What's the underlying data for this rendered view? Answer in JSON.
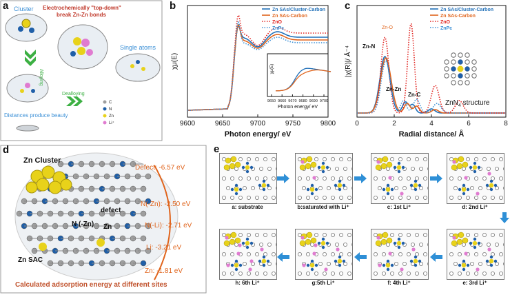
{
  "panel_a": {
    "label": "a",
    "cluster": "Cluster",
    "single_atoms": "Single atoms",
    "breaking_text": "Electrochemically \"top-down\" break Zn-Zn bonds",
    "alloying": "Alloying",
    "dealloying": "Dealloying",
    "distances": "Distances produce beauty",
    "legend": [
      "C",
      "N",
      "Zn",
      "Li⁺"
    ],
    "colors": {
      "cluster_text": "#3a8fd6",
      "red_text": "#c0392b",
      "green_arrow": "#3cb043",
      "zn": "#e8d21a",
      "n": "#1f5fa8",
      "li": "#e07bd0"
    }
  },
  "panel_b": {
    "label": "b",
    "chart_data": {
      "type": "line",
      "xlabel": "Photon energy/ eV",
      "ylabel": "χμ(E)",
      "xlim": [
        9600,
        9800
      ],
      "xticks": [
        "9600",
        "9650",
        "9700",
        "9750",
        "9800"
      ],
      "legend_placement": "top-right",
      "series": [
        {
          "name": "Zn SAs/Cluster-Carbon",
          "color": "#1f6fb8",
          "style": "solid"
        },
        {
          "name": "Zn SAs-Carbon",
          "color": "#e0641c",
          "style": "solid"
        },
        {
          "name": "ZnO",
          "color": "#e0201c",
          "style": "dotted"
        },
        {
          "name": "ZnPc",
          "color": "#3a8fd6",
          "style": "dotted"
        }
      ],
      "inset": {
        "xlabel": "Photon energy/ eV",
        "ylabel": "χμ(E)",
        "xticks": [
          "9650",
          "9660",
          "9670",
          "9680",
          "9690",
          "9700"
        ]
      }
    }
  },
  "panel_c": {
    "label": "c",
    "chart_data": {
      "type": "line",
      "xlabel": "Radial distance/ Å",
      "ylabel": "|χ(R)|/ Å⁻⁴",
      "xlim": [
        0,
        8
      ],
      "xticks": [
        "0",
        "2",
        "4",
        "6",
        "8"
      ],
      "legend_placement": "top-right",
      "series": [
        {
          "name": "Zn SAs/Cluster-Carbon",
          "color": "#1f6fb8",
          "style": "solid"
        },
        {
          "name": "Zn SAs-Carbon",
          "color": "#e0641c",
          "style": "solid"
        },
        {
          "name": "ZnO",
          "color": "#e0201c",
          "style": "dotted"
        },
        {
          "name": "ZnPc",
          "color": "#3a8fd6",
          "style": "dotted"
        }
      ],
      "annotations": [
        "Zn-O",
        "Zn-N",
        "Zn-Zn",
        "Zn-C"
      ],
      "structure_label": "ZnN",
      "structure_sub": "4",
      "structure_suffix": " structure"
    }
  },
  "panel_d": {
    "label": "d",
    "zn_cluster": "Zn Cluster",
    "zn_sac": "Zn SAC",
    "defect": "defect",
    "n_zn": "N (-Zn)",
    "zn": "Zn",
    "energies": [
      {
        "site": "Defect: -6.57 eV"
      },
      {
        "site": "N(-Zn): -2.50 eV"
      },
      {
        "site": "N(-Li): -2.71 eV"
      },
      {
        "site": "Li: -3.21 eV"
      },
      {
        "site": "Zn: -1.81 eV"
      }
    ],
    "caption": "Calculated adsorption energy at different sites",
    "colors": {
      "energy": "#e0641c",
      "caption": "#c0502a"
    }
  },
  "panel_e": {
    "label": "e",
    "top_row": [
      "a: substrate",
      "b:saturated with Li⁺",
      "c: 1st Li⁺",
      "d: 2nd Li⁺"
    ],
    "bottom_row": [
      "h: 6th Li⁺",
      "g:5th Li⁺",
      "f: 4th  Li⁺",
      "e: 3rd Li⁺"
    ],
    "arrow_color": "#2e8fd6"
  }
}
